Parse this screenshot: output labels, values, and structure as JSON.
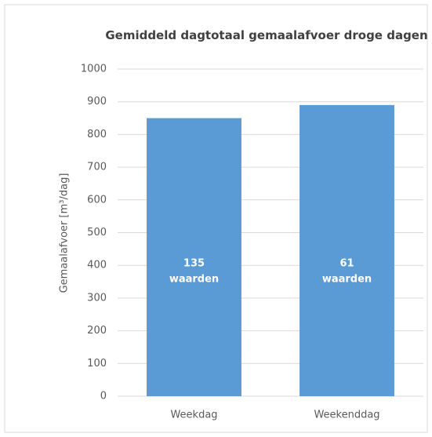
{
  "chart_data": {
    "type": "bar",
    "title": "Gemiddeld dagtotaal gemaalafvoer droge dagen",
    "y_label": "Gemaalafvoer [m³/dag]",
    "categories": [
      "Weekdag",
      "Weekenddag"
    ],
    "values": [
      850,
      890
    ],
    "color": "#5b9bd5",
    "bar_labels": [
      [
        "135",
        "waarden"
      ],
      [
        "61",
        "waarden"
      ]
    ],
    "ylim": [
      0,
      1000
    ],
    "yticks": [
      0,
      100,
      200,
      300,
      400,
      500,
      600,
      700,
      800,
      900,
      1000
    ],
    "grid": true
  }
}
